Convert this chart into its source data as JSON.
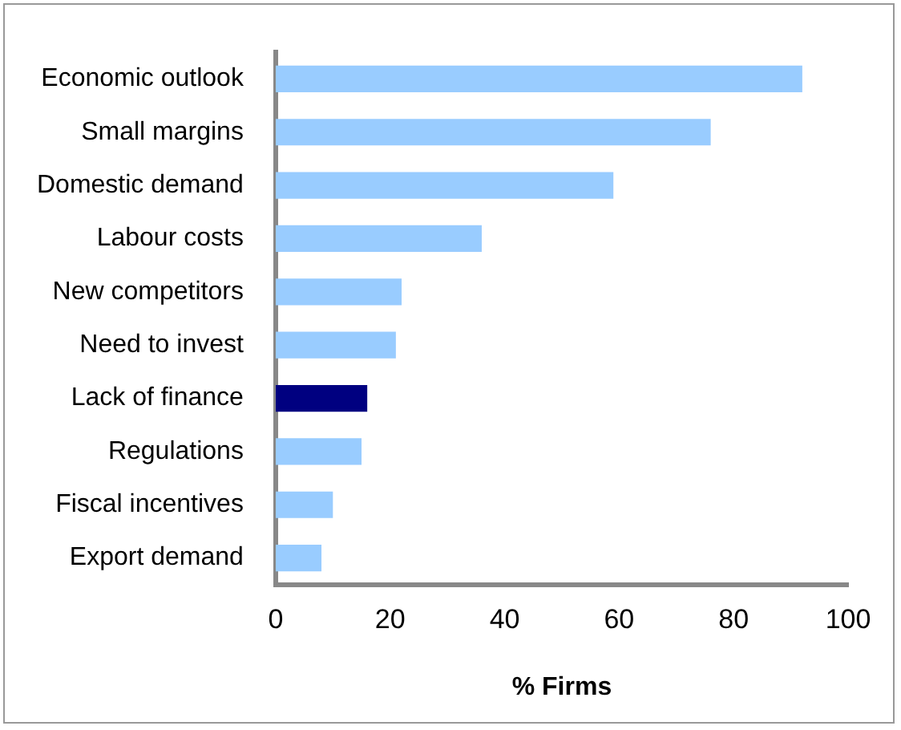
{
  "chart_data": {
    "type": "bar",
    "orientation": "horizontal",
    "xlabel": "% Firms",
    "categories": [
      "Economic outlook",
      "Small margins",
      "Domestic demand",
      "Labour costs",
      "New competitors",
      "Need to invest",
      "Lack of finance",
      "Regulations",
      "Fiscal incentives",
      "Export demand"
    ],
    "values": [
      92,
      76,
      59,
      36,
      22,
      21,
      16,
      15,
      10,
      8
    ],
    "colors": [
      "#99ccff",
      "#99ccff",
      "#99ccff",
      "#99ccff",
      "#99ccff",
      "#99ccff",
      "#000080",
      "#99ccff",
      "#99ccff",
      "#99ccff"
    ],
    "xlim": [
      0,
      100
    ],
    "xticks": [
      0,
      20,
      40,
      60,
      80,
      100
    ],
    "grid": false,
    "legend": false
  }
}
